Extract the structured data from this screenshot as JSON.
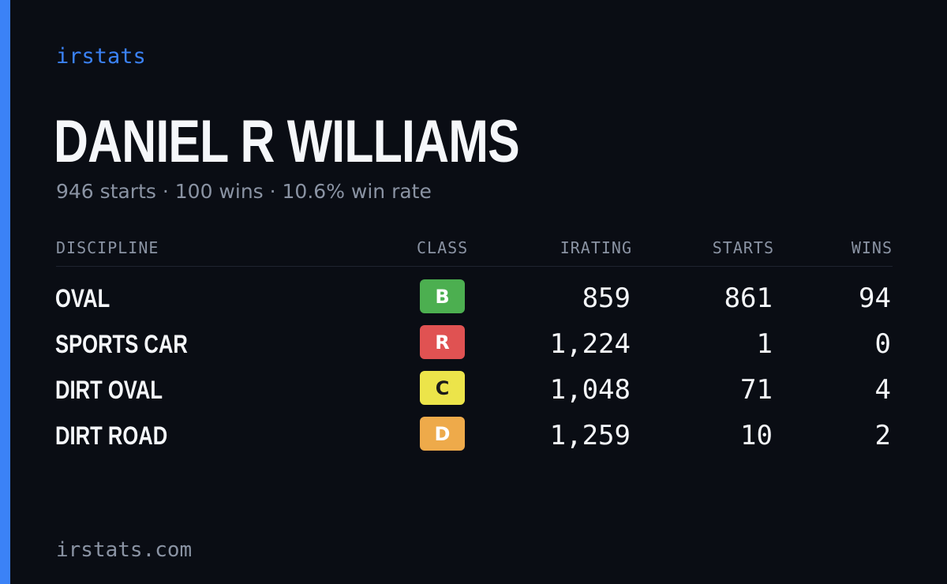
{
  "brand": "irstats",
  "driver": {
    "name": "DANIEL R WILLIAMS",
    "summary": "946 starts · 100 wins · 10.6% win rate"
  },
  "table": {
    "headers": {
      "discipline": "DISCIPLINE",
      "class": "CLASS",
      "irating": "IRATING",
      "starts": "STARTS",
      "wins": "WINS"
    },
    "rows": [
      {
        "discipline": "OVAL",
        "class": "B",
        "class_color": "#4caf50",
        "class_text_color": "#ffffff",
        "irating": "859",
        "starts": "861",
        "wins": "94"
      },
      {
        "discipline": "SPORTS CAR",
        "class": "R",
        "class_color": "#e05252",
        "class_text_color": "#ffffff",
        "irating": "1,224",
        "starts": "1",
        "wins": "0"
      },
      {
        "discipline": "DIRT OVAL",
        "class": "C",
        "class_color": "#ece44a",
        "class_text_color": "#1a1a1a",
        "irating": "1,048",
        "starts": "71",
        "wins": "4"
      },
      {
        "discipline": "DIRT ROAD",
        "class": "D",
        "class_color": "#eeaa4a",
        "class_text_color": "#ffffff",
        "irating": "1,259",
        "starts": "10",
        "wins": "2"
      }
    ]
  },
  "footer": "irstats.com",
  "colors": {
    "accent": "#3b82f6",
    "background": "#0a0d14"
  }
}
